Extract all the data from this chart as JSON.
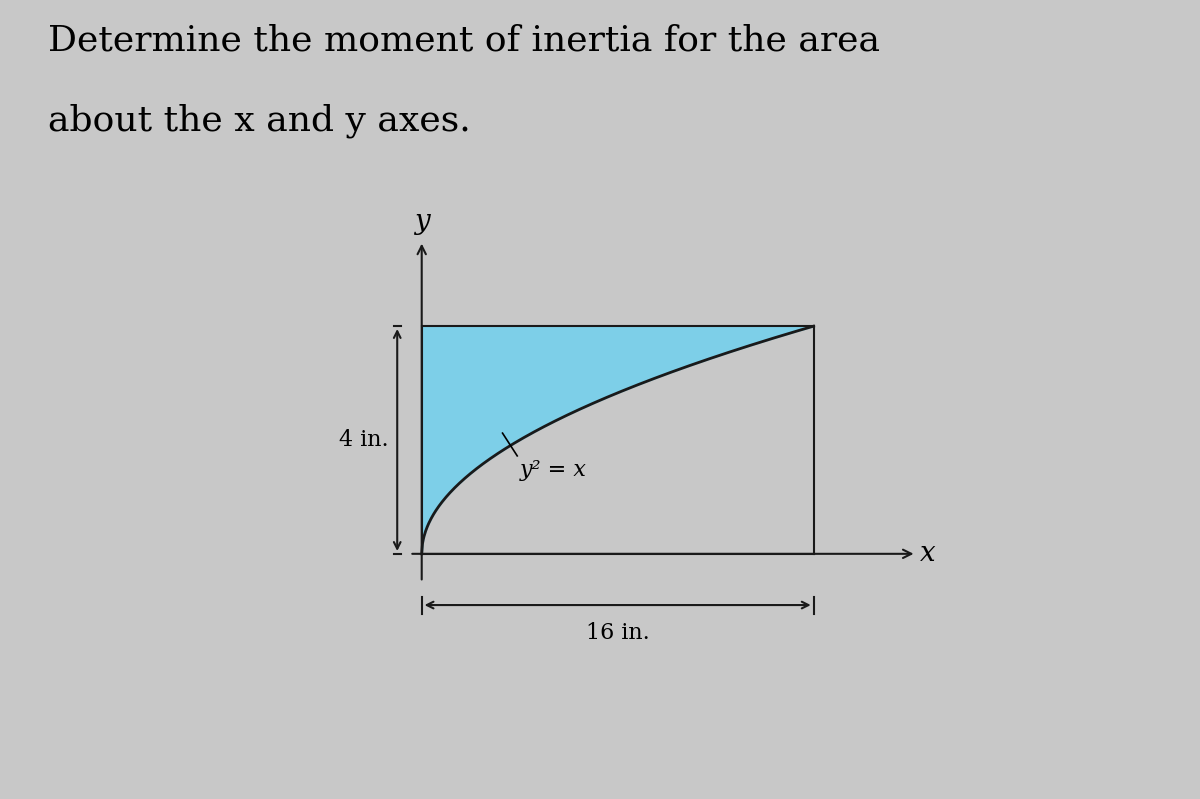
{
  "title_line1": "Determine the moment of inertia for the area",
  "title_line2": "about the x and y axes.",
  "title_fontsize": 26,
  "bg_color": "#c8c8c8",
  "fill_color": "#7dcfe8",
  "fill_alpha": 1.0,
  "curve_color": "#1a1a1a",
  "curve_lw": 2.0,
  "border_color": "#1a1a1a",
  "border_lw": 1.5,
  "x_max": 16,
  "y_max": 4,
  "label_4in": "4 in.",
  "label_16in": "16 in.",
  "equation_label": "y² = x",
  "axis_label_x": "x",
  "axis_label_y": "y",
  "arrow_color": "#1a1a1a",
  "dim_arrow_color": "#1a1a1a"
}
